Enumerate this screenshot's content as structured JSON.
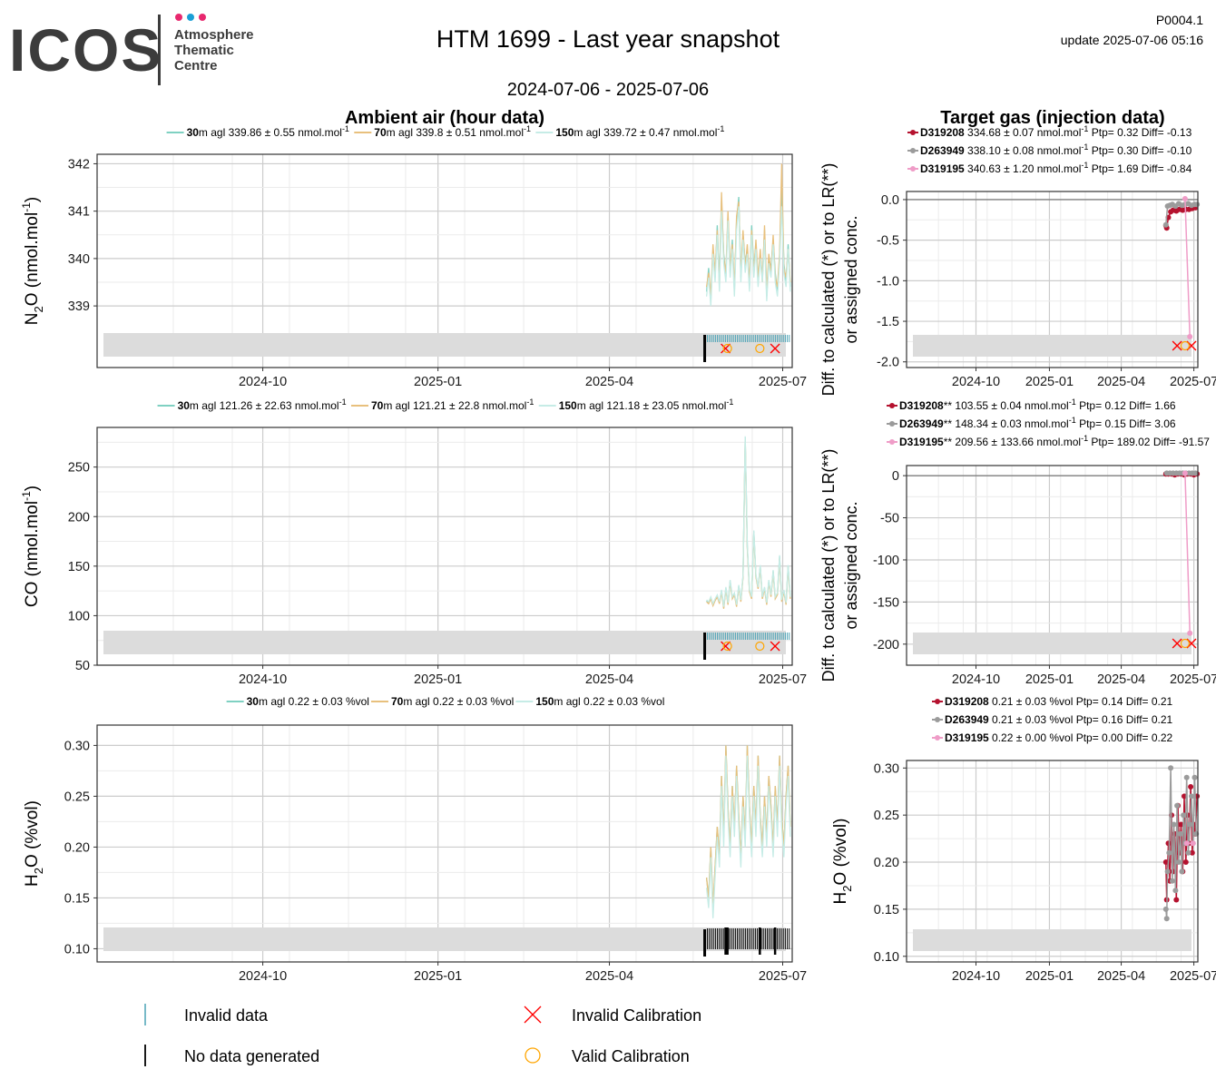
{
  "header": {
    "logo_wordmark": "ICOS",
    "logo_subtitle_lines": [
      "Atmosphere",
      "Thematic",
      "Centre"
    ],
    "logo_dot_colors": [
      "#e8286e",
      "#1a9fd6",
      "#e8286e"
    ],
    "title": "HTM 1699 - Last year snapshot",
    "date_range": "2024-07-06 - 2025-07-06",
    "page_code": "P0004.1",
    "update": "update  2025-07-06 05:16"
  },
  "colors": {
    "30m": "#7fd1c2",
    "70m": "#e8c07d",
    "150m": "#c6ece6",
    "D319208": "#b5122f",
    "D263949": "#9b9b9b",
    "D319195": "#ef9cc7",
    "invalid_data": "#4aa3b5",
    "invalid_calibration": "#ff0000",
    "valid_calibration": "#ffa500",
    "band": "#dcdcdc"
  },
  "chart_data": [
    {
      "id": "n2o-ambient",
      "type": "line",
      "section_title": "Ambient air (hour data)",
      "ylabel_main": "N",
      "ylabel_sub": "2",
      "ylabel_rest": "O (nmol.mol",
      "ylabel_sup": "-1",
      "ylabel_end": ")",
      "x_ticks": [
        "2024-10",
        "2025-01",
        "2025-04",
        "2025-07"
      ],
      "y_ticks": [
        339,
        340,
        341,
        342
      ],
      "ylim": [
        337.7,
        342.2
      ],
      "legend": [
        {
          "height": "30",
          "suffix": "m agl 339.86 ± 0.55 nmol.mol",
          "sup": "-1"
        },
        {
          "height": "70",
          "suffix": "m agl 339.8 ± 0.51 nmol.mol",
          "sup": "-1"
        },
        {
          "height": "150",
          "suffix": "m agl 339.72 ± 0.47 nmol.mol",
          "sup": "-1"
        }
      ],
      "series_x_start": "2025-05-22",
      "series_x_end": "2025-07-05",
      "series": [
        {
          "name": "30",
          "values": [
            339.3,
            339.8,
            339.1,
            340.2,
            339.6,
            340.7,
            339.5,
            341.2,
            340.1,
            339.6,
            340.9,
            339.7,
            340.4,
            339.3,
            340.8,
            341.3,
            339.6,
            340.5,
            339.9,
            340.2,
            339.4,
            340.7,
            339.8,
            340.3,
            339.5,
            340.1,
            339.6,
            340.6,
            339.2,
            340.0,
            339.8,
            340.4,
            339.7,
            339.3,
            340.0,
            341.6,
            339.9,
            339.5,
            340.3,
            339.4
          ]
        },
        {
          "name": "70",
          "values": [
            339.4,
            339.7,
            339.2,
            340.3,
            339.7,
            340.6,
            339.4,
            341.4,
            340.0,
            339.7,
            341.0,
            339.8,
            340.3,
            339.4,
            340.9,
            341.2,
            339.7,
            340.6,
            339.8,
            340.3,
            339.5,
            340.6,
            339.7,
            340.4,
            339.6,
            340.2,
            339.5,
            340.7,
            339.3,
            340.1,
            339.7,
            340.5,
            339.6,
            339.4,
            340.1,
            342.0,
            339.8,
            339.6,
            340.2,
            339.5
          ]
        },
        {
          "name": "150",
          "values": [
            339.2,
            339.6,
            339.0,
            340.1,
            339.5,
            340.5,
            339.3,
            341.0,
            339.9,
            339.5,
            340.8,
            339.6,
            340.2,
            339.2,
            340.6,
            341.1,
            339.5,
            340.4,
            339.7,
            340.1,
            339.3,
            340.5,
            339.6,
            340.2,
            339.4,
            340.0,
            339.5,
            340.4,
            339.1,
            339.9,
            339.6,
            340.3,
            339.5,
            339.2,
            339.9,
            341.1,
            339.7,
            339.4,
            340.2,
            339.3
          ]
        }
      ],
      "marker_row": "invalid_data",
      "markers": {
        "invalid_calibration": [
          "2025-06-01",
          "2025-06-27"
        ],
        "valid_calibration": [
          "2025-06-02",
          "2025-06-19"
        ]
      }
    },
    {
      "id": "n2o-target",
      "type": "scatter",
      "section_title": "Target gas (injection data)",
      "ylabel_line1": "Diff. to calculated (*) or to LR(**)",
      "ylabel_line2": "or assigned conc.",
      "x_ticks": [
        "2024-10",
        "2025-01",
        "2025-04",
        "2025-07"
      ],
      "y_ticks": [
        0.0,
        -0.5,
        -1.0,
        -1.5,
        -2.0
      ],
      "ylim": [
        -2.07,
        0.1
      ],
      "legend": [
        {
          "name": "D319208",
          "text": " 334.68 ± 0.07 nmol.mol",
          "sup": "-1",
          "tail": " Ptp= 0.32 Diff= -0.13"
        },
        {
          "name": "D263949",
          "text": " 338.10 ± 0.08 nmol.mol",
          "sup": "-1",
          "tail": " Ptp= 0.30 Diff= -0.10"
        },
        {
          "name": "D319195",
          "text": " 340.63 ± 1.20 nmol.mol",
          "sup": "-1",
          "tail": " Ptp= 1.69 Diff= -0.84"
        }
      ],
      "series": [
        {
          "name": "D319208",
          "x": [
            "2025-05-27",
            "2025-05-28",
            "2025-05-30",
            "2025-06-02",
            "2025-06-05",
            "2025-06-09",
            "2025-06-13",
            "2025-06-17",
            "2025-06-21",
            "2025-06-25",
            "2025-06-29",
            "2025-07-03"
          ],
          "values": [
            -0.32,
            -0.35,
            -0.22,
            -0.15,
            -0.13,
            -0.14,
            -0.12,
            -0.13,
            -0.12,
            -0.12,
            -0.11,
            -0.1
          ]
        },
        {
          "name": "D263949",
          "x": [
            "2025-05-27",
            "2025-05-29",
            "2025-06-01",
            "2025-06-04",
            "2025-06-08",
            "2025-06-12",
            "2025-06-16",
            "2025-06-20",
            "2025-06-24",
            "2025-06-28",
            "2025-07-02",
            "2025-07-05"
          ],
          "values": [
            -0.31,
            -0.08,
            -0.07,
            -0.06,
            -0.08,
            -0.05,
            -0.07,
            -0.06,
            -0.05,
            -0.07,
            -0.06,
            -0.06
          ]
        },
        {
          "name": "D319195",
          "x": [
            "2025-06-20",
            "2025-06-26"
          ],
          "values": [
            0.01,
            -1.69
          ]
        }
      ],
      "markers": {
        "invalid_calibration": [
          "2025-06-10",
          "2025-06-28"
        ],
        "valid_calibration": [
          "2025-06-20"
        ]
      }
    },
    {
      "id": "co-ambient",
      "type": "line",
      "ylabel_main": "CO (nmol.mol",
      "ylabel_sup": "-1",
      "ylabel_end": ")",
      "x_ticks": [
        "2024-10",
        "2025-01",
        "2025-04",
        "2025-07"
      ],
      "y_ticks": [
        50,
        100,
        150,
        200,
        250
      ],
      "ylim": [
        50,
        290
      ],
      "legend": [
        {
          "height": "30",
          "suffix": "m agl 121.26 ± 22.63 nmol.mol",
          "sup": "-1"
        },
        {
          "height": "70",
          "suffix": "m agl 121.21 ± 22.8 nmol.mol",
          "sup": "-1"
        },
        {
          "height": "150",
          "suffix": "m agl 121.18 ± 23.05 nmol.mol",
          "sup": "-1"
        }
      ],
      "series_x_start": "2025-05-22",
      "series_x_end": "2025-07-05",
      "series": [
        {
          "name": "30",
          "values": [
            115,
            113,
            118,
            111,
            116,
            120,
            113,
            125,
            108,
            128,
            112,
            135,
            118,
            122,
            110,
            130,
            115,
            140,
            280,
            170,
            125,
            118,
            185,
            140,
            128,
            150,
            118,
            128,
            112,
            135,
            120,
            145,
            118,
            122,
            160,
            115,
            125,
            112,
            150,
            118
          ]
        },
        {
          "name": "70",
          "values": [
            114,
            112,
            117,
            110,
            115,
            119,
            112,
            124,
            107,
            127,
            111,
            134,
            117,
            121,
            109,
            129,
            114,
            139,
            278,
            168,
            124,
            117,
            183,
            139,
            127,
            149,
            117,
            127,
            111,
            134,
            119,
            144,
            117,
            121,
            158,
            114,
            124,
            111,
            149,
            117
          ]
        },
        {
          "name": "150",
          "values": [
            116,
            114,
            119,
            112,
            117,
            121,
            114,
            126,
            109,
            129,
            113,
            136,
            119,
            123,
            111,
            131,
            116,
            141,
            281,
            171,
            126,
            119,
            186,
            141,
            129,
            151,
            119,
            129,
            113,
            136,
            121,
            146,
            119,
            123,
            161,
            116,
            126,
            113,
            151,
            119
          ]
        }
      ],
      "marker_row": "invalid_data",
      "markers": {
        "invalid_calibration": [
          "2025-06-01",
          "2025-06-27"
        ],
        "valid_calibration": [
          "2025-06-02",
          "2025-06-19"
        ]
      }
    },
    {
      "id": "co-target",
      "type": "scatter",
      "ylabel_line1": "Diff. to calculated (*) or to LR(**)",
      "ylabel_line2": "or assigned conc.",
      "x_ticks": [
        "2024-10",
        "2025-01",
        "2025-04",
        "2025-07"
      ],
      "y_ticks": [
        0,
        -50,
        -100,
        -150,
        -200
      ],
      "ylim": [
        -225,
        12
      ],
      "legend": [
        {
          "name": "D319208",
          "marker": "**",
          "text": " 103.55 ± 0.04 nmol.mol",
          "sup": "-1",
          "tail": " Ptp= 0.12 Diff= 1.66"
        },
        {
          "name": "D263949",
          "marker": "**",
          "text": " 148.34 ± 0.03 nmol.mol",
          "sup": "-1",
          "tail": " Ptp= 0.15 Diff= 3.06"
        },
        {
          "name": "D319195",
          "marker": "**",
          "text": " 209.56 ± 133.66 nmol.mol",
          "sup": "-1",
          "tail": " Ptp= 189.02 Diff= -91.57"
        }
      ],
      "series": [
        {
          "name": "D319208",
          "x": [
            "2025-05-27",
            "2025-05-30",
            "2025-06-03",
            "2025-06-07",
            "2025-06-11",
            "2025-06-15",
            "2025-06-19",
            "2025-06-23",
            "2025-06-27",
            "2025-07-01",
            "2025-07-05"
          ],
          "values": [
            2,
            2,
            2,
            1,
            2,
            2,
            1,
            2,
            2,
            1,
            2
          ]
        },
        {
          "name": "D263949",
          "x": [
            "2025-05-28",
            "2025-06-01",
            "2025-06-05",
            "2025-06-09",
            "2025-06-13",
            "2025-06-17",
            "2025-06-21",
            "2025-06-25",
            "2025-06-29",
            "2025-07-03"
          ],
          "values": [
            3,
            3,
            3,
            3,
            3,
            3,
            3,
            3,
            3,
            3
          ]
        },
        {
          "name": "D319195",
          "x": [
            "2025-06-20",
            "2025-06-26"
          ],
          "values": [
            3,
            -187
          ]
        }
      ],
      "markers": {
        "invalid_calibration": [
          "2025-06-10",
          "2025-06-28"
        ],
        "valid_calibration": [
          "2025-06-20"
        ]
      }
    },
    {
      "id": "h2o-ambient",
      "type": "line",
      "ylabel_main": "H",
      "ylabel_sub": "2",
      "ylabel_rest": "O (%vol)",
      "x_ticks": [
        "2024-10",
        "2025-01",
        "2025-04",
        "2025-07"
      ],
      "y_ticks": [
        0.1,
        0.15,
        0.2,
        0.25,
        0.3
      ],
      "ylim": [
        0.087,
        0.32
      ],
      "legend": [
        {
          "height": "30",
          "suffix": "m agl 0.22 ± 0.03 %vol",
          "sup": ""
        },
        {
          "height": "70",
          "suffix": "m agl 0.22 ± 0.03 %vol",
          "sup": ""
        },
        {
          "height": "150",
          "suffix": "m agl 0.22 ± 0.03 %vol",
          "sup": ""
        }
      ],
      "series_x_start": "2025-05-22",
      "series_x_end": "2025-07-05",
      "series": [
        {
          "name": "30",
          "values": [
            0.17,
            0.15,
            0.2,
            0.14,
            0.18,
            0.22,
            0.19,
            0.27,
            0.21,
            0.3,
            0.24,
            0.2,
            0.26,
            0.22,
            0.28,
            0.23,
            0.19,
            0.25,
            0.21,
            0.3,
            0.24,
            0.2,
            0.26,
            0.22,
            0.29,
            0.23,
            0.2,
            0.25,
            0.21,
            0.27,
            0.24,
            0.2,
            0.26,
            0.22,
            0.29,
            0.23,
            0.2,
            0.25,
            0.28,
            0.22
          ]
        },
        {
          "name": "70",
          "values": [
            0.17,
            0.15,
            0.2,
            0.14,
            0.18,
            0.22,
            0.19,
            0.27,
            0.21,
            0.3,
            0.24,
            0.2,
            0.26,
            0.22,
            0.28,
            0.23,
            0.19,
            0.25,
            0.21,
            0.3,
            0.24,
            0.2,
            0.26,
            0.22,
            0.29,
            0.23,
            0.2,
            0.25,
            0.21,
            0.27,
            0.24,
            0.2,
            0.26,
            0.22,
            0.29,
            0.23,
            0.2,
            0.25,
            0.28,
            0.22
          ]
        },
        {
          "name": "150",
          "values": [
            0.16,
            0.14,
            0.19,
            0.13,
            0.17,
            0.21,
            0.18,
            0.26,
            0.2,
            0.29,
            0.23,
            0.19,
            0.25,
            0.21,
            0.27,
            0.22,
            0.18,
            0.24,
            0.2,
            0.29,
            0.23,
            0.19,
            0.25,
            0.21,
            0.28,
            0.22,
            0.19,
            0.24,
            0.2,
            0.26,
            0.23,
            0.19,
            0.25,
            0.21,
            0.28,
            0.22,
            0.19,
            0.24,
            0.27,
            0.21
          ]
        }
      ],
      "marker_row": "no_data"
    },
    {
      "id": "h2o-target",
      "type": "scatter",
      "ylabel_main": "H",
      "ylabel_sub": "2",
      "ylabel_rest": "O (%vol)",
      "x_ticks": [
        "2024-10",
        "2025-01",
        "2025-04",
        "2025-07"
      ],
      "y_ticks": [
        0.1,
        0.15,
        0.2,
        0.25,
        0.3
      ],
      "ylim": [
        0.094,
        0.308
      ],
      "legend": [
        {
          "name": "D319208",
          "text": " 0.21 ± 0.03 %vol Ptp= 0.14 Diff= 0.21",
          "sup": "",
          "tail": ""
        },
        {
          "name": "D263949",
          "text": " 0.21 ± 0.03 %vol Ptp= 0.16 Diff= 0.21",
          "sup": "",
          "tail": ""
        },
        {
          "name": "D319195",
          "text": " 0.22 ± 0.00 %vol Ptp= 0.00 Diff= 0.22",
          "sup": "",
          "tail": ""
        }
      ],
      "series": [
        {
          "name": "D319208",
          "x": [
            "2025-05-27",
            "2025-05-28",
            "2025-05-30",
            "2025-06-01",
            "2025-06-03",
            "2025-06-05",
            "2025-06-07",
            "2025-06-09",
            "2025-06-11",
            "2025-06-13",
            "2025-06-15",
            "2025-06-17",
            "2025-06-19",
            "2025-06-21",
            "2025-06-23",
            "2025-06-25",
            "2025-06-27",
            "2025-06-29",
            "2025-07-01",
            "2025-07-03",
            "2025-07-05"
          ],
          "values": [
            0.2,
            0.16,
            0.22,
            0.18,
            0.25,
            0.19,
            0.23,
            0.16,
            0.26,
            0.21,
            0.24,
            0.19,
            0.27,
            0.2,
            0.25,
            0.22,
            0.28,
            0.21,
            0.24,
            0.23,
            0.27
          ]
        },
        {
          "name": "D263949",
          "x": [
            "2025-05-27",
            "2025-05-28",
            "2025-05-29",
            "2025-05-31",
            "2025-06-02",
            "2025-06-04",
            "2025-06-06",
            "2025-06-08",
            "2025-06-10",
            "2025-06-12",
            "2025-06-14",
            "2025-06-16",
            "2025-06-18",
            "2025-06-20",
            "2025-06-22",
            "2025-06-24",
            "2025-06-26",
            "2025-06-28",
            "2025-06-30",
            "2025-07-02",
            "2025-07-04"
          ],
          "values": [
            0.15,
            0.14,
            0.19,
            0.21,
            0.3,
            0.18,
            0.24,
            0.17,
            0.26,
            0.2,
            0.23,
            0.19,
            0.25,
            0.22,
            0.29,
            0.21,
            0.24,
            0.27,
            0.22,
            0.29,
            0.23
          ]
        },
        {
          "name": "D319195",
          "x": [
            "2025-06-22",
            "2025-06-30"
          ],
          "values": [
            0.22,
            0.22
          ]
        }
      ]
    }
  ],
  "legend_bottom": {
    "invalid_data": "Invalid data",
    "no_data": "No data generated",
    "invalid_calibration": "Invalid Calibration",
    "valid_calibration": "Valid Calibration"
  }
}
